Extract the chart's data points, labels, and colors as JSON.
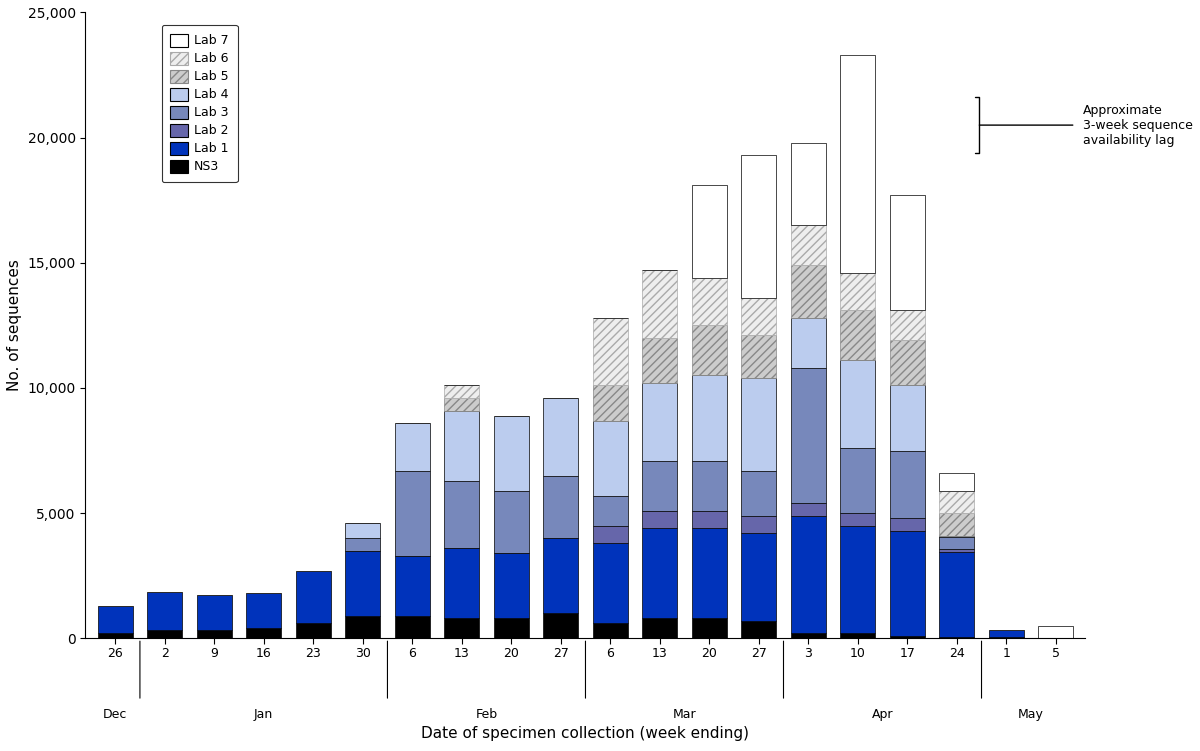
{
  "tick_labels": [
    "26",
    "2",
    "9",
    "16",
    "23",
    "30",
    "6",
    "13",
    "20",
    "27",
    "6",
    "13",
    "20",
    "27",
    "3",
    "10",
    "17",
    "24",
    "1",
    "5"
  ],
  "month_labels": [
    "Dec",
    "Jan",
    "Feb",
    "Mar",
    "Apr",
    "May"
  ],
  "month_centers": [
    0,
    3.0,
    7.5,
    11.5,
    15.5,
    18.5
  ],
  "divider_positions": [
    0.5,
    5.5,
    9.5,
    13.5,
    17.5
  ],
  "stacked_data": {
    "NS3": [
      200,
      350,
      350,
      400,
      600,
      900,
      900,
      800,
      800,
      1000,
      600,
      800,
      800,
      700,
      200,
      200,
      100,
      50,
      50,
      0
    ],
    "Lab1": [
      1100,
      1500,
      1400,
      1400,
      2100,
      2600,
      2400,
      2800,
      2600,
      3000,
      3200,
      3600,
      3600,
      3500,
      4700,
      4300,
      4200,
      3400,
      300,
      0
    ],
    "Lab2": [
      0,
      0,
      0,
      0,
      0,
      0,
      0,
      0,
      0,
      0,
      700,
      700,
      700,
      700,
      500,
      500,
      500,
      100,
      0,
      0
    ],
    "Lab3": [
      0,
      0,
      0,
      0,
      0,
      500,
      3400,
      2700,
      2500,
      2500,
      1200,
      2000,
      2000,
      1800,
      5400,
      2600,
      2700,
      500,
      0,
      0
    ],
    "Lab4": [
      0,
      0,
      0,
      0,
      0,
      600,
      1900,
      2800,
      3000,
      3100,
      3000,
      3100,
      3400,
      3700,
      2000,
      3500,
      2600,
      50,
      0,
      0
    ],
    "Lab5": [
      0,
      0,
      0,
      0,
      0,
      0,
      0,
      500,
      0,
      0,
      1400,
      1800,
      2000,
      1700,
      2100,
      2000,
      1800,
      900,
      0,
      0
    ],
    "Lab6": [
      0,
      0,
      0,
      0,
      0,
      0,
      0,
      500,
      0,
      0,
      2700,
      2700,
      1900,
      1500,
      1600,
      1500,
      1200,
      900,
      0,
      0
    ],
    "Lab7": [
      0,
      0,
      0,
      0,
      0,
      0,
      0,
      0,
      0,
      0,
      0,
      0,
      3700,
      5700,
      3300,
      8700,
      4600,
      700,
      0,
      500
    ]
  },
  "lab_styles": {
    "NS3": {
      "color": "#000000",
      "hatch": null,
      "edgecolor": "#000000"
    },
    "Lab1": {
      "color": "#0033bb",
      "hatch": null,
      "edgecolor": "#000000"
    },
    "Lab2": {
      "color": "#6666aa",
      "hatch": null,
      "edgecolor": "#000000"
    },
    "Lab3": {
      "color": "#7788bb",
      "hatch": null,
      "edgecolor": "#000000"
    },
    "Lab4": {
      "color": "#bbccee",
      "hatch": null,
      "edgecolor": "#000000"
    },
    "Lab5": {
      "color": "#cccccc",
      "hatch": "////",
      "edgecolor": "#888888"
    },
    "Lab6": {
      "color": "#eeeeee",
      "hatch": "////",
      "edgecolor": "#aaaaaa"
    },
    "Lab7": {
      "color": "#ffffff",
      "hatch": null,
      "edgecolor": "#000000"
    }
  },
  "layers": [
    "NS3",
    "Lab1",
    "Lab2",
    "Lab3",
    "Lab4",
    "Lab5",
    "Lab6",
    "Lab7"
  ],
  "legend_entries": [
    {
      "label": "Lab 7",
      "color": "#ffffff",
      "hatch": null,
      "edgecolor": "#000000"
    },
    {
      "label": "Lab 6",
      "color": "#eeeeee",
      "hatch": "////",
      "edgecolor": "#aaaaaa"
    },
    {
      "label": "Lab 5",
      "color": "#cccccc",
      "hatch": "////",
      "edgecolor": "#888888"
    },
    {
      "label": "Lab 4",
      "color": "#bbccee",
      "hatch": null,
      "edgecolor": "#000000"
    },
    {
      "label": "Lab 3",
      "color": "#7788bb",
      "hatch": null,
      "edgecolor": "#000000"
    },
    {
      "label": "Lab 2",
      "color": "#6666aa",
      "hatch": null,
      "edgecolor": "#000000"
    },
    {
      "label": "Lab 1",
      "color": "#0033bb",
      "hatch": null,
      "edgecolor": "#000000"
    },
    {
      "label": "NS3",
      "color": "#000000",
      "hatch": null,
      "edgecolor": "#000000"
    }
  ],
  "ylim": [
    0,
    25000
  ],
  "yticks": [
    0,
    5000,
    10000,
    15000,
    20000,
    25000
  ],
  "xlabel": "Date of specimen collection (week ending)",
  "ylabel": "No. of sequences",
  "bar_width": 0.7,
  "annotation_text": "Approximate\n3-week sequence\navailability lag"
}
